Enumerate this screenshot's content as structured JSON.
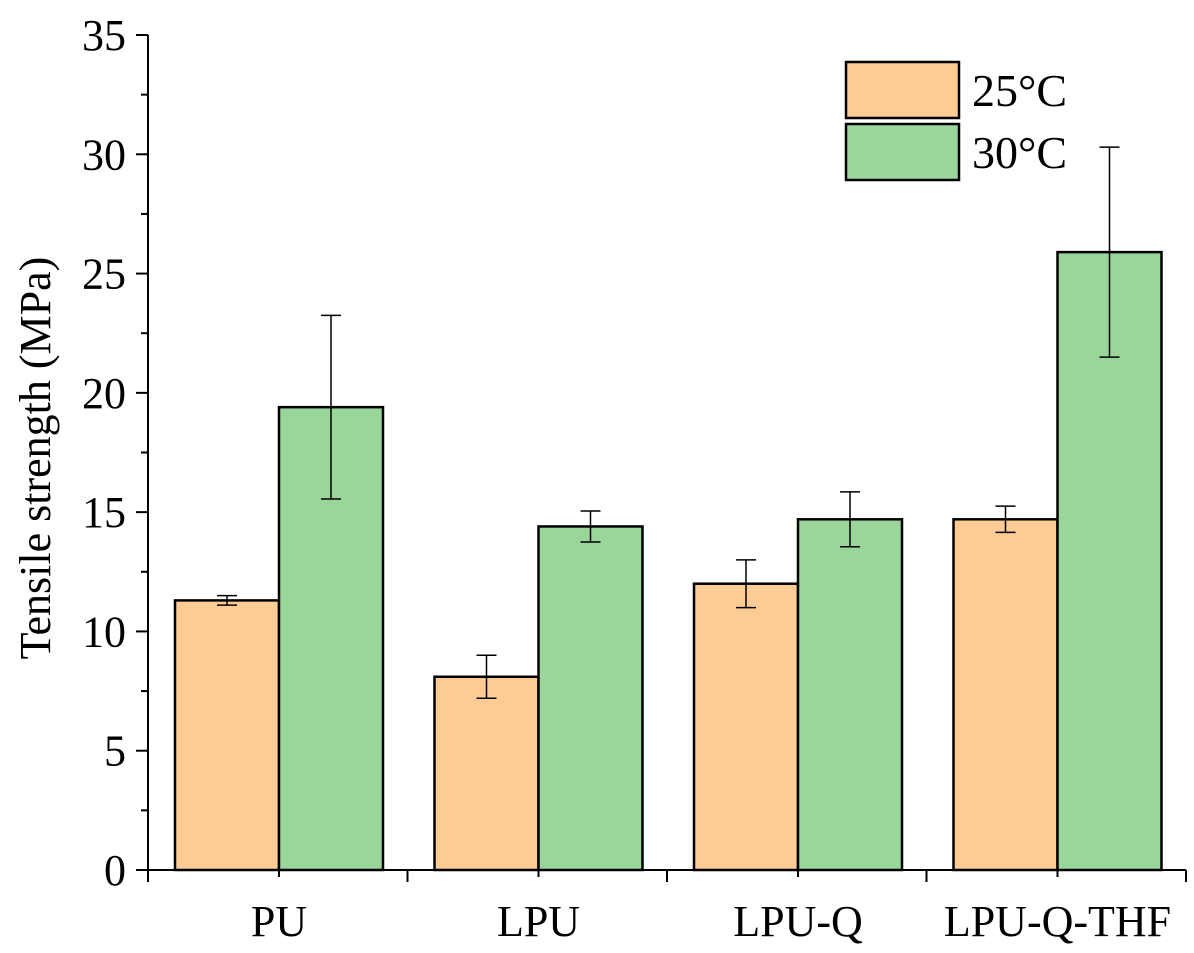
{
  "chart_data": {
    "type": "bar",
    "title": "",
    "xlabel": "",
    "ylabel": "Tensile strength (MPa)",
    "ylim": [
      0,
      35
    ],
    "yticks": [
      0,
      5,
      10,
      15,
      20,
      25,
      30,
      35
    ],
    "categories": [
      "PU",
      "LPU",
      "LPU-Q",
      "LPU-Q-THF"
    ],
    "series": [
      {
        "name": "25°C",
        "color": "#FDCB94",
        "values": [
          11.3,
          8.1,
          12.0,
          14.7
        ],
        "errors": [
          0.2,
          0.9,
          1.0,
          0.55
        ]
      },
      {
        "name": "30°C",
        "color": "#9AD59A",
        "values": [
          19.4,
          14.4,
          14.7,
          25.9
        ],
        "errors": [
          3.85,
          0.65,
          1.15,
          4.4
        ]
      }
    ],
    "legend_position": "top-right",
    "grid": false
  }
}
